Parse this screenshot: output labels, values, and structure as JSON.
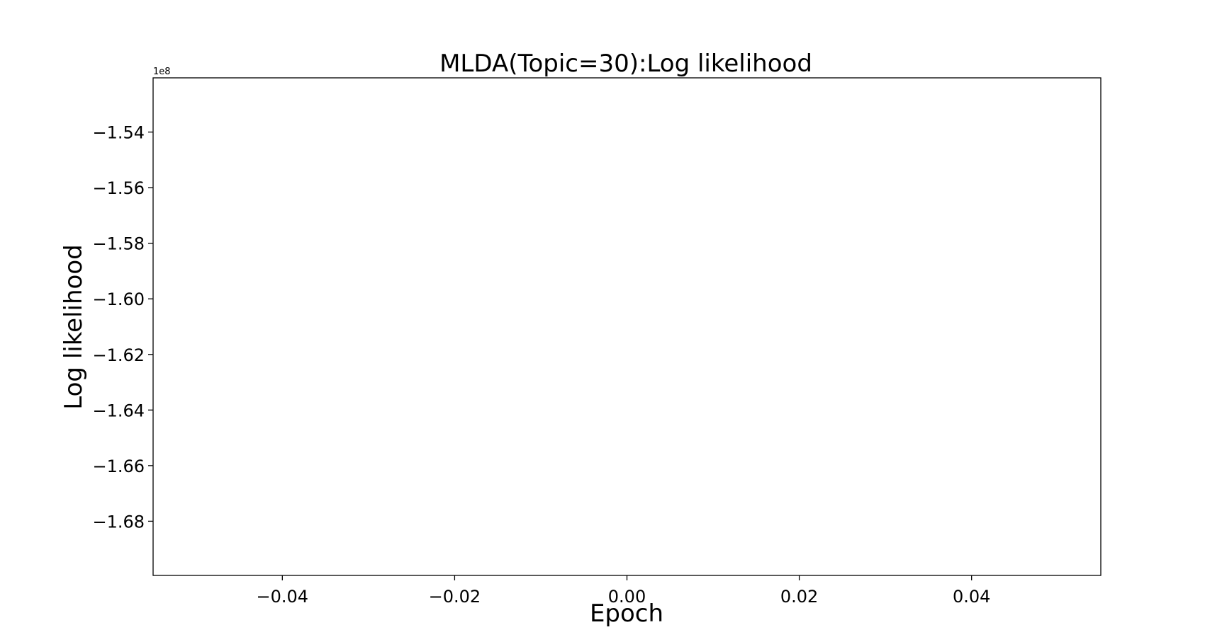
{
  "chart_data": {
    "type": "line",
    "title": "MLDA(Topic=30):Log likelihood",
    "xlabel": "Epoch",
    "ylabel": "Log likelihood",
    "y_offset_text": "1e8",
    "xlim": [
      -0.055,
      0.055
    ],
    "ylim": [
      -1.6995,
      -1.5205
    ],
    "x_ticks": [
      -0.04,
      -0.02,
      0.0,
      0.02,
      0.04
    ],
    "x_tick_labels": [
      "−0.04",
      "−0.02",
      "0.00",
      "0.02",
      "0.04"
    ],
    "y_ticks": [
      -1.54,
      -1.56,
      -1.58,
      -1.6,
      -1.62,
      -1.64,
      -1.66,
      -1.68
    ],
    "y_tick_labels": [
      "−1.54",
      "−1.56",
      "−1.58",
      "−1.60",
      "−1.62",
      "−1.64",
      "−1.66",
      "−1.68"
    ],
    "grid": false,
    "series": [],
    "colors": {
      "axes": "#000000",
      "background": "#ffffff"
    }
  }
}
